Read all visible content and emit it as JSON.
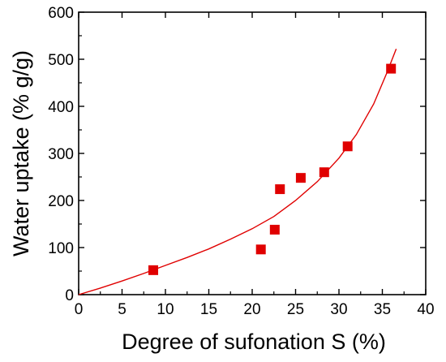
{
  "chart_data": {
    "type": "scatter",
    "title": "",
    "xlabel": "Degree of sufonation S (%)",
    "ylabel": "Water uptake (% g/g)",
    "xlim": [
      0,
      40
    ],
    "ylim": [
      0,
      600
    ],
    "xticks": [
      0,
      5,
      10,
      15,
      20,
      25,
      30,
      35,
      40
    ],
    "yticks": [
      0,
      100,
      200,
      300,
      400,
      500,
      600
    ],
    "grid": false,
    "legend": "none",
    "marker": "square",
    "color": "#e00000",
    "points": [
      {
        "x": 8.6,
        "y": 52
      },
      {
        "x": 21.0,
        "y": 96
      },
      {
        "x": 22.6,
        "y": 138
      },
      {
        "x": 23.2,
        "y": 224
      },
      {
        "x": 25.6,
        "y": 248
      },
      {
        "x": 28.3,
        "y": 260
      },
      {
        "x": 31.0,
        "y": 315
      },
      {
        "x": 36.0,
        "y": 480
      }
    ],
    "fit_curve": {
      "type": "line",
      "points": [
        {
          "x": 0,
          "y": 0
        },
        {
          "x": 2.5,
          "y": 14
        },
        {
          "x": 5,
          "y": 29
        },
        {
          "x": 7.5,
          "y": 45
        },
        {
          "x": 10,
          "y": 62
        },
        {
          "x": 12.5,
          "y": 79
        },
        {
          "x": 15,
          "y": 97
        },
        {
          "x": 17.5,
          "y": 118
        },
        {
          "x": 20,
          "y": 140
        },
        {
          "x": 22.5,
          "y": 166
        },
        {
          "x": 25,
          "y": 200
        },
        {
          "x": 27.5,
          "y": 240
        },
        {
          "x": 30,
          "y": 290
        },
        {
          "x": 32,
          "y": 340
        },
        {
          "x": 34,
          "y": 405
        },
        {
          "x": 35.5,
          "y": 470
        },
        {
          "x": 36.6,
          "y": 522
        }
      ]
    }
  }
}
